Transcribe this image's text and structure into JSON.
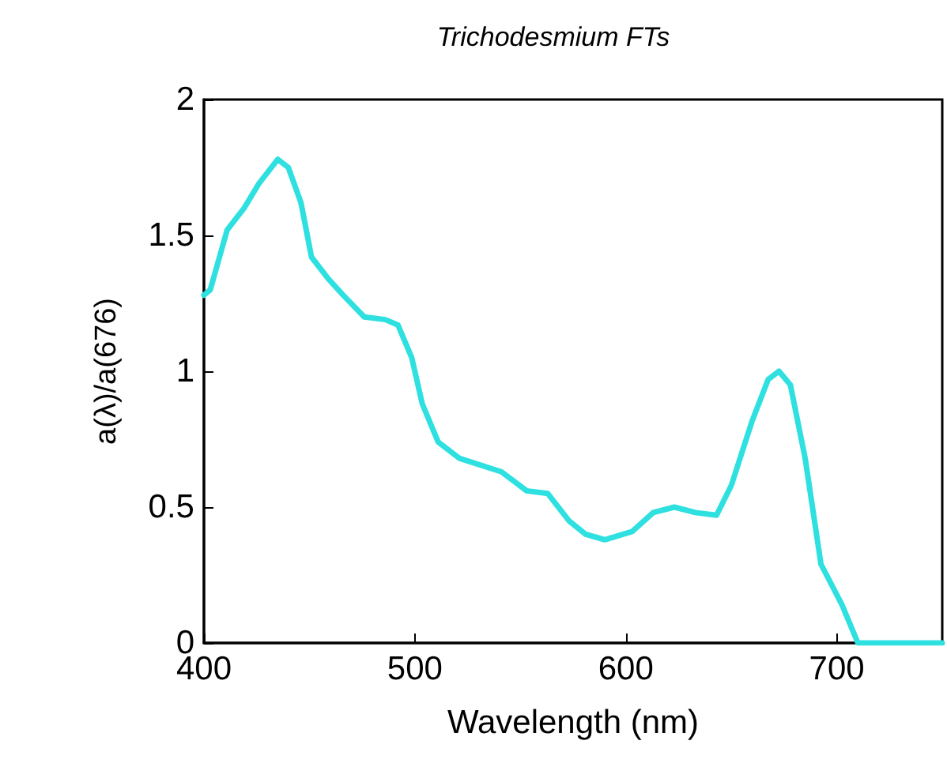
{
  "chart_data": {
    "type": "line",
    "title": "Trichodesmium FTs",
    "xlabel": "Wavelength (nm)",
    "ylabel": "a(λ)/a(676)",
    "xlim": [
      400,
      750
    ],
    "xticks": [
      400,
      500,
      600,
      700
    ],
    "ylim": [
      0,
      2
    ],
    "yticks": [
      0,
      0.5,
      1,
      1.5,
      2
    ],
    "grid": false,
    "marker": "none",
    "line_style": "solid",
    "x": [
      400,
      403,
      411,
      419,
      426,
      435,
      440,
      446,
      451,
      459,
      466,
      476,
      486,
      492,
      498.5,
      503.5,
      511,
      521,
      541,
      553,
      563,
      573,
      581,
      590,
      603,
      613,
      623,
      633,
      643,
      650,
      660,
      667.5,
      672.6,
      678,
      685,
      692.5,
      702.5,
      710,
      750
    ],
    "series": [
      {
        "color": "#2ee0e0",
        "values": [
          1.28,
          1.3,
          1.52,
          1.6,
          1.69,
          1.78,
          1.75,
          1.62,
          1.42,
          1.34,
          1.28,
          1.2,
          1.19,
          1.17,
          1.05,
          0.88,
          0.74,
          0.68,
          0.63,
          0.56,
          0.55,
          0.45,
          0.4,
          0.38,
          0.41,
          0.48,
          0.5,
          0.48,
          0.47,
          0.58,
          0.82,
          0.97,
          1.0,
          0.95,
          0.68,
          0.29,
          0.14,
          0,
          0
        ]
      }
    ]
  }
}
